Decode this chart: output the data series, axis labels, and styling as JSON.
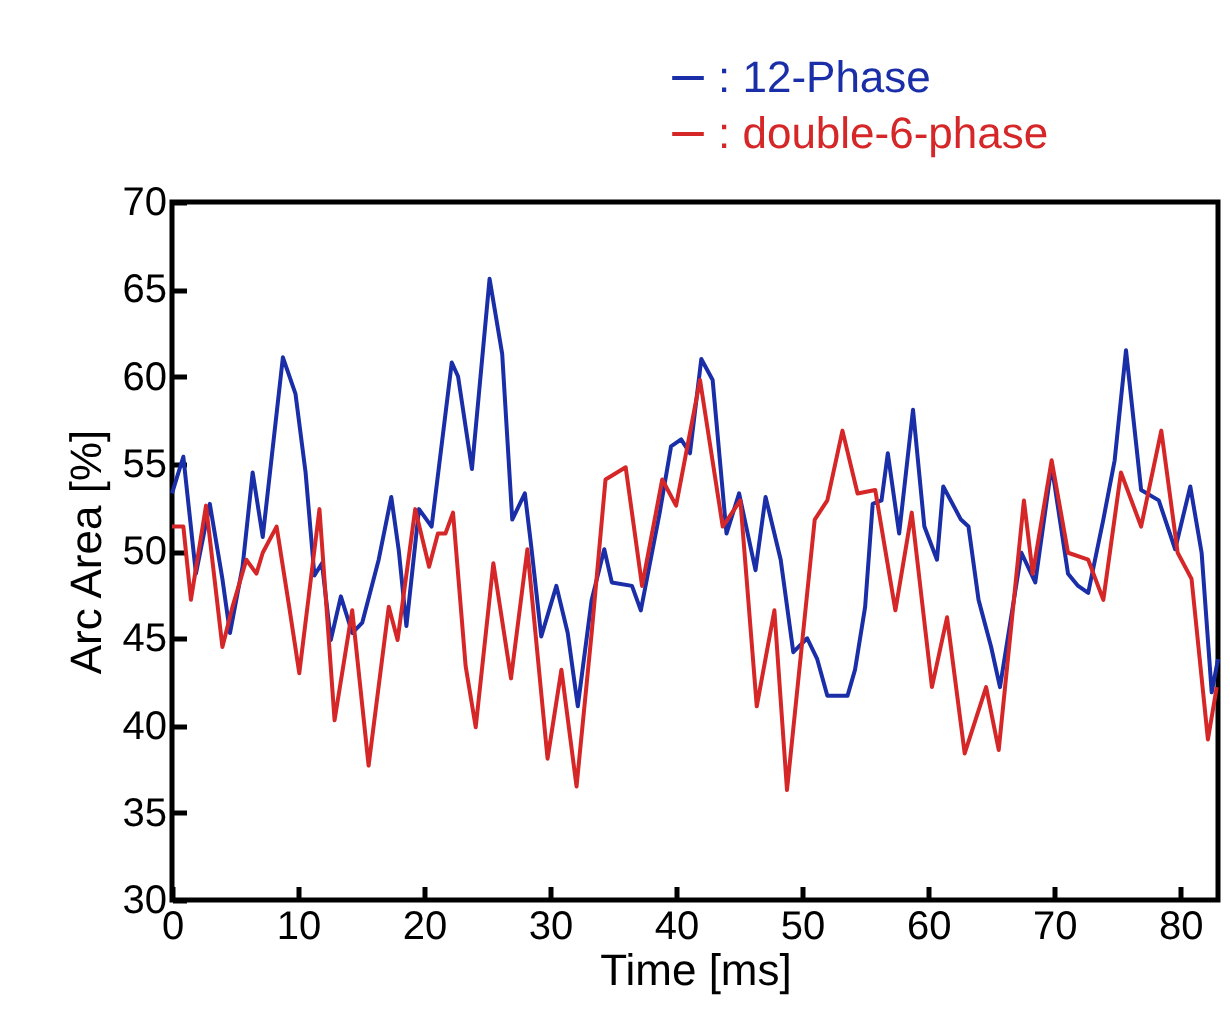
{
  "chart_data": {
    "type": "line",
    "xlabel": "Time [ms]",
    "ylabel": "Arc Area [%]",
    "xlim": [
      0,
      83
    ],
    "ylim": [
      30,
      70
    ],
    "xticks": [
      0,
      10,
      20,
      30,
      40,
      50,
      60,
      70,
      80
    ],
    "yticks": [
      30,
      35,
      40,
      45,
      50,
      55,
      60,
      65,
      70
    ],
    "grid": false,
    "legend": "top right",
    "line_style": "solid",
    "marker": "none",
    "series": [
      {
        "name": ": 12-Phase",
        "color": "#1a2ea8",
        "x": [
          0,
          0.9,
          1.9,
          3,
          4,
          4.6,
          5.6,
          6.4,
          7.2,
          8.8,
          9.8,
          10.6,
          11.3,
          11.9,
          12.6,
          13.4,
          14.3,
          15.1,
          16.4,
          17.4,
          18,
          18.6,
          19.6,
          20.6,
          22.2,
          22.7,
          23.8,
          25.2,
          26.2,
          27,
          28,
          28.5,
          29.3,
          30.5,
          31.4,
          32.2,
          33.3,
          34.3,
          34.9,
          36.5,
          37.2,
          38.7,
          39.6,
          40.4,
          41.1,
          42,
          42.9,
          44,
          45,
          46.3,
          47.1,
          48.3,
          49.3,
          50.4,
          51.2,
          52,
          53.6,
          54.2,
          55,
          55.6,
          56.3,
          56.8,
          57.7,
          58.8,
          59.7,
          60.7,
          61.2,
          62.6,
          63.2,
          64,
          65,
          65.7,
          67.4,
          68.5,
          69.8,
          71.1,
          71.9,
          72.7,
          73.9,
          74.8,
          75.7,
          76.9,
          78.3,
          79.6,
          80.8,
          81.7,
          82.5,
          83
        ],
        "values": [
          53.3,
          55.4,
          48.7,
          52.7,
          48.4,
          45.3,
          49.1,
          54.5,
          50.8,
          61.1,
          59,
          54.5,
          48.6,
          49.3,
          44.9,
          47.4,
          45.3,
          45.9,
          49.5,
          53.1,
          50,
          45.7,
          52.4,
          51.4,
          60.8,
          60,
          54.7,
          65.6,
          61.3,
          51.8,
          53.3,
          50.3,
          45.1,
          48,
          45.3,
          41.1,
          47.2,
          50.1,
          48.2,
          48,
          46.6,
          52.2,
          56,
          56.4,
          55.6,
          61,
          59.8,
          51,
          53.3,
          48.9,
          53.1,
          49.5,
          44.2,
          45,
          43.8,
          41.7,
          41.7,
          43.2,
          46.8,
          52.7,
          52.9,
          55.6,
          51,
          58.1,
          51.4,
          49.5,
          53.7,
          51.8,
          51.4,
          47.2,
          44.5,
          42.2,
          49.9,
          48.2,
          54.9,
          48.7,
          48,
          47.6,
          51.8,
          55.2,
          61.5,
          53.5,
          52.9,
          50.1,
          53.7,
          49.9,
          41.9,
          43.8
        ]
      },
      {
        "name": ": double-6-phase",
        "color": "#d62728",
        "x": [
          0,
          0.9,
          1.5,
          2.7,
          4,
          4.8,
          5.9,
          6.7,
          7.2,
          8.3,
          9.3,
          10.1,
          11.7,
          12.9,
          14.3,
          15.6,
          17.2,
          17.9,
          19.3,
          20.4,
          21.1,
          21.7,
          22.3,
          23.3,
          24.1,
          25.5,
          26.9,
          28.2,
          29.8,
          30.9,
          32.1,
          33.3,
          34.4,
          36,
          37.3,
          38.9,
          40,
          41.9,
          43.7,
          45.1,
          46.4,
          47.8,
          48.8,
          51,
          52,
          53.2,
          54.4,
          55.8,
          57.4,
          58.7,
          60.3,
          61.5,
          62.9,
          64.6,
          65.6,
          67.6,
          68.3,
          69.8,
          71.1,
          72.7,
          73.9,
          75.3,
          76.9,
          78.5,
          79.8,
          80.9,
          82.2,
          82.9
        ],
        "values": [
          51.4,
          51.4,
          47.2,
          52.6,
          44.5,
          46.8,
          49.5,
          48.7,
          49.9,
          51.4,
          46.8,
          43,
          52.4,
          40.3,
          46.6,
          37.7,
          46.8,
          44.9,
          52.4,
          49.1,
          51,
          51,
          52.2,
          43.4,
          39.9,
          49.3,
          42.7,
          50.1,
          38.1,
          43.2,
          36.5,
          45.3,
          54.1,
          54.8,
          48,
          54.1,
          52.6,
          59.8,
          51.4,
          52.9,
          41.1,
          46.6,
          36.3,
          51.8,
          52.9,
          56.9,
          53.3,
          53.5,
          46.6,
          52.2,
          42.2,
          46.2,
          38.4,
          42.2,
          38.6,
          52.9,
          48.7,
          55.2,
          49.9,
          49.5,
          47.2,
          54.5,
          51.4,
          56.9,
          49.9,
          48.4,
          39.2,
          42.2
        ]
      }
    ]
  }
}
